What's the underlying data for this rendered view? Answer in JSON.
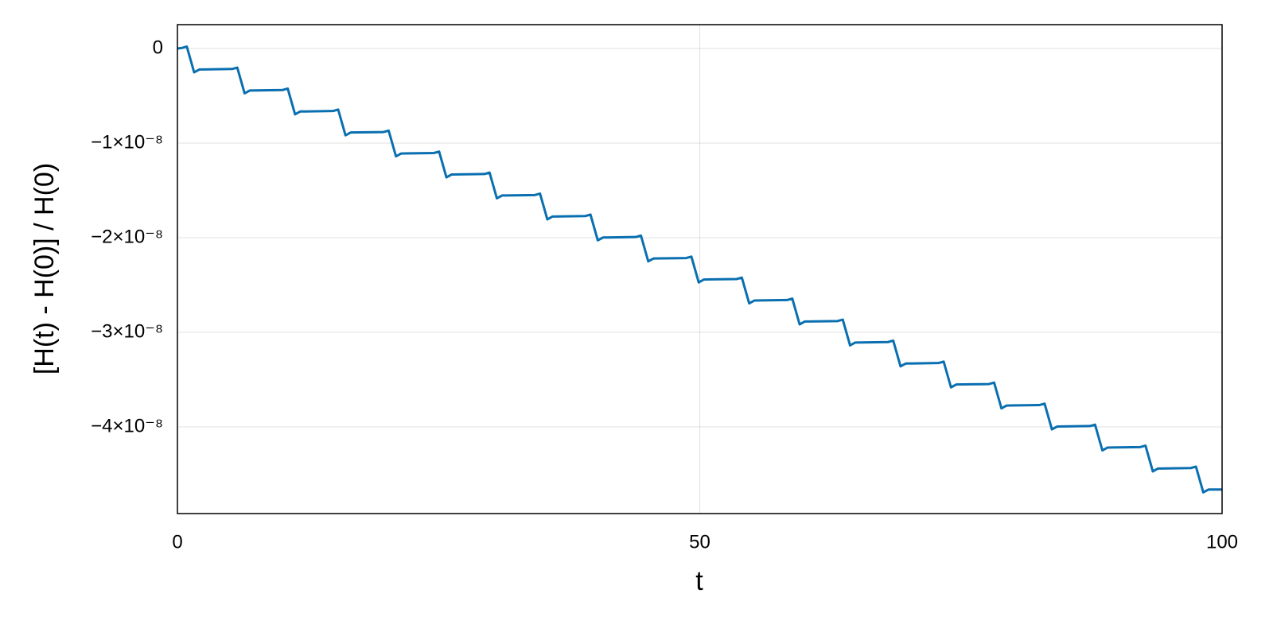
{
  "chart_data": {
    "type": "line",
    "xlabel": "t",
    "ylabel": "[H(t) - H(0)] / H(0)",
    "color": "#0a6fb0",
    "grid": true,
    "xlim": [
      0,
      100
    ],
    "xticks": [
      0,
      50,
      100
    ],
    "ylim": [
      -4.916e-08,
      2.52e-09
    ],
    "yticks": [
      0,
      {
        "value": -1e-08,
        "label": "−1×10⁻⁸"
      },
      {
        "value": -2e-08,
        "label": "−2×10⁻⁸"
      },
      {
        "value": -3e-08,
        "label": "−3×10⁻⁸"
      },
      {
        "value": -4e-08,
        "label": "−4×10⁻⁸"
      }
    ],
    "x": [
      0,
      0.4,
      0.9,
      1.6,
      2.1,
      5.23,
      5.73,
      6.43,
      6.93,
      10.06,
      10.56,
      11.26,
      11.76,
      14.89,
      15.39,
      16.09,
      16.59,
      19.72,
      20.22,
      20.92,
      21.42,
      24.55,
      25.05,
      25.75,
      26.25,
      29.38,
      29.88,
      30.58,
      31.08,
      34.21,
      34.71,
      35.41,
      35.91,
      39.04,
      39.54,
      40.24,
      40.74,
      43.87,
      44.37,
      45.07,
      45.57,
      48.7,
      49.2,
      49.9,
      50.4,
      53.53,
      54.03,
      54.73,
      55.23,
      58.36,
      58.86,
      59.56,
      60.06,
      63.19,
      63.69,
      64.39,
      64.89,
      68.02,
      68.52,
      69.22,
      69.72,
      72.85,
      73.35,
      74.05,
      74.55,
      77.68,
      78.18,
      78.88,
      79.38,
      82.51,
      83.01,
      83.71,
      84.21,
      87.34,
      87.84,
      88.54,
      89.04,
      92.17,
      92.67,
      93.37,
      93.87,
      97.0,
      97.5,
      98.2,
      98.7,
      100
    ],
    "values": [
      0,
      5e-11,
      2e-10,
      -2.52e-09,
      -2.22e-09,
      -2.17e-09,
      -2.02e-09,
      -4.74e-09,
      -4.44e-09,
      -4.39e-09,
      -4.24e-09,
      -6.96e-09,
      -6.66e-09,
      -6.61e-09,
      -6.46e-09,
      -9.18e-09,
      -8.88e-09,
      -8.83e-09,
      -8.68e-09,
      -1.14e-08,
      -1.11e-08,
      -1.105e-08,
      -1.09e-08,
      -1.362e-08,
      -1.332e-08,
      -1.327e-08,
      -1.312e-08,
      -1.584e-08,
      -1.554e-08,
      -1.549e-08,
      -1.534e-08,
      -1.806e-08,
      -1.776e-08,
      -1.771e-08,
      -1.756e-08,
      -2.028e-08,
      -1.998e-08,
      -1.993e-08,
      -1.978e-08,
      -2.25e-08,
      -2.22e-08,
      -2.215e-08,
      -2.2e-08,
      -2.472e-08,
      -2.442e-08,
      -2.437e-08,
      -2.422e-08,
      -2.694e-08,
      -2.664e-08,
      -2.659e-08,
      -2.644e-08,
      -2.916e-08,
      -2.886e-08,
      -2.881e-08,
      -2.866e-08,
      -3.138e-08,
      -3.108e-08,
      -3.103e-08,
      -3.088e-08,
      -3.36e-08,
      -3.33e-08,
      -3.325e-08,
      -3.31e-08,
      -3.582e-08,
      -3.552e-08,
      -3.547e-08,
      -3.532e-08,
      -3.804e-08,
      -3.774e-08,
      -3.769e-08,
      -3.754e-08,
      -4.026e-08,
      -3.996e-08,
      -3.991e-08,
      -3.976e-08,
      -4.248e-08,
      -4.218e-08,
      -4.213e-08,
      -4.198e-08,
      -4.47e-08,
      -4.44e-08,
      -4.435e-08,
      -4.42e-08,
      -4.692e-08,
      -4.662e-08,
      -4.662e-08
    ]
  }
}
